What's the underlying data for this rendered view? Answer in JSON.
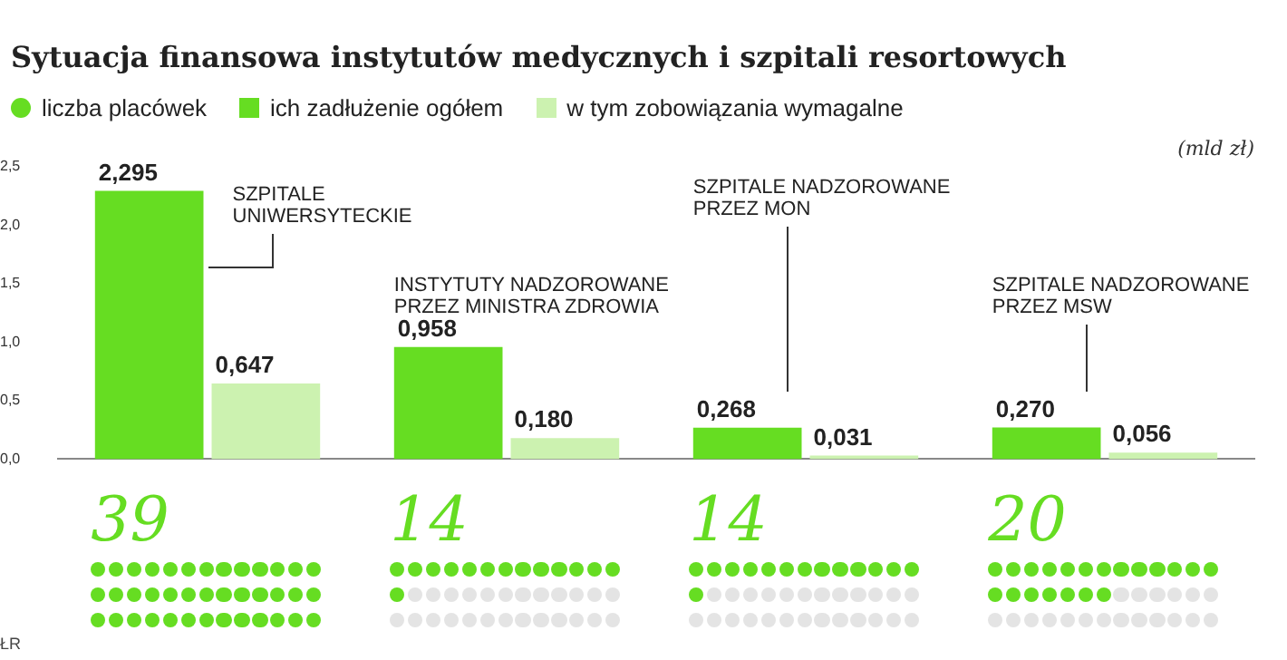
{
  "chart_data": [
    {
      "type": "bar",
      "title": "Sytuacja finansowa instytutów medycznych i szpitali resortowych",
      "ylabel": "(mld zł)",
      "categories": [
        "SZPITALE\nUNIWERSYTECKIE",
        "INSTYTUTY NADZOROWANE\nPRZEZ MINISTRA ZDROWIA",
        "SZPITALE NADZOROWANE\nPRZEZ MON",
        "SZPITALE NADZOROWANE\nPRZEZ MSW"
      ],
      "series": [
        {
          "name": "ich zadłużenie ogółem",
          "color": "#66dd22",
          "values": [
            2.295,
            0.958,
            0.268,
            0.27
          ],
          "value_labels": [
            "2,295",
            "0,958",
            "0,268",
            "0,270"
          ]
        },
        {
          "name": "w tym zobowiązania wymagalne",
          "color": "#ccf2b0",
          "values": [
            0.647,
            0.18,
            0.031,
            0.056
          ],
          "value_labels": [
            "0,647",
            "0,180",
            "0,031",
            "0,056"
          ]
        }
      ],
      "ylim": [
        0,
        2.5
      ],
      "yticks": [
        {
          "value": 0,
          "label": "0,0"
        },
        {
          "value": 0.5,
          "label": "0,5"
        },
        {
          "value": 1,
          "label": "1,0"
        },
        {
          "value": 1.5,
          "label": "1,5"
        },
        {
          "value": 2,
          "label": "2,0"
        },
        {
          "value": 2.5,
          "label": "2,5"
        }
      ],
      "grid": false,
      "legend": "top left"
    },
    {
      "type": "other",
      "categories": [
        null,
        null,
        null,
        null
      ],
      "series": [
        {
          "name": "liczba placówek",
          "color": "#66dd22",
          "values": [
            39,
            14,
            14,
            20
          ]
        }
      ],
      "data_labels": true,
      "legend": "top left",
      "annotations": [
        "ŁR"
      ]
    }
  ]
}
